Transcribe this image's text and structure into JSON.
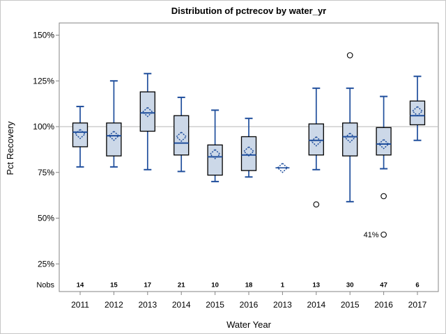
{
  "chart_data": {
    "type": "box",
    "title": "Distribution of pctrecov by water_yr",
    "xlabel": "Water Year",
    "ylabel": "Pct Recovery",
    "yticks": [
      150,
      125,
      100,
      75,
      50,
      25
    ],
    "ytick_suffix": "%",
    "ylim": [
      10,
      160
    ],
    "reference_line": 100,
    "grid": "reference-line-only",
    "legend": "none",
    "nobs_label": "Nobs",
    "categories": [
      "2011",
      "2012",
      "2013",
      "2014",
      "2015",
      "2016",
      "2013",
      "2014",
      "2015",
      "2016",
      "2017"
    ],
    "nobs": [
      14,
      15,
      17,
      21,
      10,
      18,
      1,
      13,
      30,
      47,
      6
    ],
    "series": [
      {
        "category": "2011",
        "nobs": 14,
        "low": 78,
        "q1": 89,
        "median": 97,
        "mean": 96,
        "q3": 102,
        "high": 111,
        "outliers": []
      },
      {
        "category": "2012",
        "nobs": 15,
        "low": 78,
        "q1": 84,
        "median": 95,
        "mean": 95,
        "q3": 102,
        "high": 125,
        "outliers": []
      },
      {
        "category": "2013",
        "nobs": 17,
        "low": 76.5,
        "q1": 97.5,
        "median": 107.5,
        "mean": 108,
        "q3": 119,
        "high": 129,
        "outliers": []
      },
      {
        "category": "2014",
        "nobs": 21,
        "low": 75.5,
        "q1": 84.5,
        "median": 91,
        "mean": 94.5,
        "q3": 106,
        "high": 116,
        "outliers": []
      },
      {
        "category": "2015",
        "nobs": 10,
        "low": 70,
        "q1": 73.5,
        "median": 83.5,
        "mean": 85,
        "q3": 90,
        "high": 109,
        "outliers": []
      },
      {
        "category": "2016",
        "nobs": 18,
        "low": 72.5,
        "q1": 76,
        "median": 84.5,
        "mean": 86.5,
        "q3": 94.5,
        "high": 104.5,
        "outliers": []
      },
      {
        "category": "2013",
        "nobs": 1,
        "low": null,
        "q1": null,
        "median": 77.5,
        "mean": 77.5,
        "q3": null,
        "high": null,
        "outliers": []
      },
      {
        "category": "2014",
        "nobs": 13,
        "low": 76.5,
        "q1": 84.5,
        "median": 92.5,
        "mean": 92,
        "q3": 101.5,
        "high": 121,
        "outliers": [
          57.5
        ]
      },
      {
        "category": "2015",
        "nobs": 30,
        "low": 59,
        "q1": 84,
        "median": 94.5,
        "mean": 94,
        "q3": 102,
        "high": 121,
        "outliers": [
          139
        ]
      },
      {
        "category": "2016",
        "nobs": 47,
        "low": 77,
        "q1": 84.5,
        "median": 90.5,
        "mean": 90.5,
        "q3": 99.5,
        "high": 116.5,
        "outliers": [
          62,
          {
            "value": 41,
            "label": "41%"
          }
        ]
      },
      {
        "category": "2017",
        "nobs": 6,
        "low": 92.5,
        "q1": 101,
        "median": 106,
        "mean": 108.5,
        "q3": 114,
        "high": 127.5,
        "outliers": []
      }
    ],
    "colors": {
      "box_fill": "#ccd8e8",
      "box_border": "#000000",
      "line": "#1f4e9c",
      "reference_line": "#c3c3c3",
      "axis": "#848484",
      "outlier_stroke": "#000000",
      "outlier_fill": "#ffffff",
      "text": "#000000"
    }
  }
}
